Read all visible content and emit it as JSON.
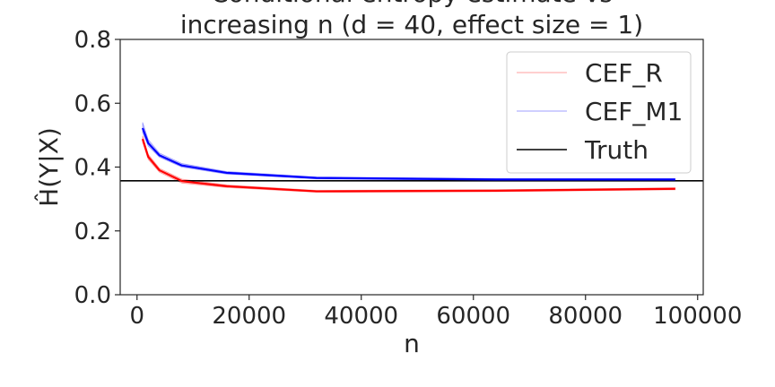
{
  "chart_data": {
    "type": "line",
    "title_lines": [
      "Conditional entropy estimate vs",
      "increasing n (d = 40, effect size = 1)"
    ],
    "xlabel": "n",
    "ylabel": "Ĥ(Y|X)",
    "xlim": [
      -3000,
      101000
    ],
    "ylim": [
      0.0,
      0.8
    ],
    "xticks": [
      0,
      20000,
      40000,
      60000,
      80000,
      100000
    ],
    "yticks": [
      0.0,
      0.2,
      0.4,
      0.6,
      0.8
    ],
    "xtick_labels": [
      "0",
      "20000",
      "40000",
      "60000",
      "80000",
      "100000"
    ],
    "ytick_labels": [
      "0.0",
      "0.2",
      "0.4",
      "0.6",
      "0.8"
    ],
    "grid": false,
    "legend_position": "top-right",
    "series": [
      {
        "name": "CEF_R",
        "color": "#ff0000",
        "x": [
          1000,
          2000,
          4000,
          8000,
          16000,
          32000,
          64000,
          96000
        ],
        "y": [
          0.488,
          0.432,
          0.39,
          0.356,
          0.34,
          0.324,
          0.326,
          0.332
        ],
        "band_low": [
          0.478,
          0.424,
          0.384,
          0.35,
          0.336,
          0.321,
          0.323,
          0.329
        ],
        "band_high": [
          0.498,
          0.44,
          0.396,
          0.362,
          0.344,
          0.327,
          0.329,
          0.335
        ]
      },
      {
        "name": "CEF_M1",
        "color": "#0000ff",
        "x": [
          1000,
          2000,
          4000,
          8000,
          16000,
          32000,
          64000,
          96000
        ],
        "y": [
          0.522,
          0.475,
          0.437,
          0.405,
          0.382,
          0.366,
          0.361,
          0.361
        ],
        "band_low": [
          0.508,
          0.466,
          0.431,
          0.4,
          0.378,
          0.363,
          0.358,
          0.358
        ],
        "band_high": [
          0.54,
          0.486,
          0.444,
          0.411,
          0.386,
          0.369,
          0.364,
          0.364
        ]
      }
    ],
    "reference_line": {
      "name": "Truth",
      "y": 0.357,
      "color": "#000000"
    }
  }
}
